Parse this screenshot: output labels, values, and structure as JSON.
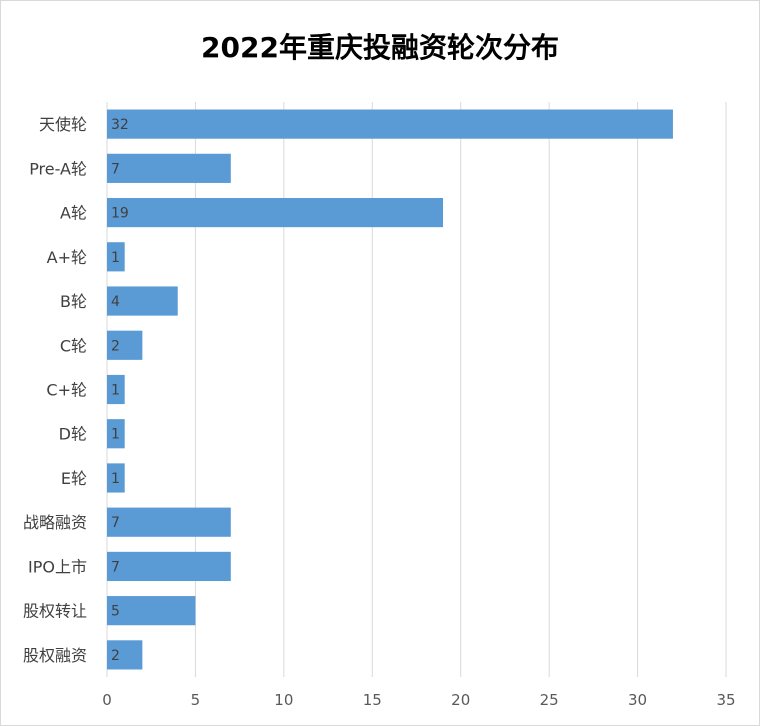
{
  "chart_data": {
    "type": "bar",
    "orientation": "horizontal",
    "title": "2022年重庆投融资轮次分布",
    "categories": [
      "天使轮",
      "Pre-A轮",
      "A轮",
      "A+轮",
      "B轮",
      "C轮",
      "C+轮",
      "D轮",
      "E轮",
      "战略融资",
      "IPO上市",
      "股权转让",
      "股权融资"
    ],
    "values": [
      32,
      7,
      19,
      1,
      4,
      2,
      1,
      1,
      1,
      7,
      7,
      5,
      2
    ],
    "xlim": [
      0,
      35
    ],
    "xticks": [
      0,
      5,
      10,
      15,
      20,
      25,
      30,
      35
    ],
    "grid": "vertical",
    "legend": "none",
    "bar_color": "#5b9bd5",
    "grid_color": "#d9d9d9"
  }
}
